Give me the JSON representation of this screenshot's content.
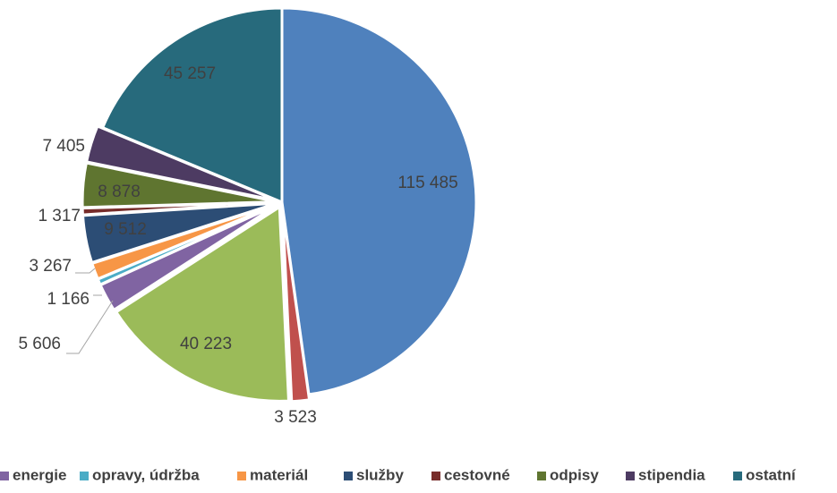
{
  "chart_data": {
    "type": "pie",
    "title": "",
    "categories": [
      "",
      "",
      "",
      "energie",
      "opravy, údržba",
      "materiál",
      "služby",
      "cestovné",
      "odpisy",
      "stipendia",
      "ostatní"
    ],
    "values": [
      115485,
      3523,
      40223,
      5606,
      1166,
      3267,
      9512,
      1317,
      8878,
      7405,
      45257
    ],
    "value_labels": [
      "115 485",
      "3 523",
      "40 223",
      "5 606",
      "1 166",
      "3 267",
      "9 512",
      "1 317",
      "8 878",
      "7 405",
      "45 257"
    ],
    "colors": [
      "#4f81bd",
      "#c0504d",
      "#9bbb59",
      "#8064a2",
      "#4bacc6",
      "#f79646",
      "#2c4d75",
      "#772c2a",
      "#5f7530",
      "#4d3b62",
      "#276a7c"
    ],
    "legend": {
      "position": "bottom",
      "entries": [
        "energie",
        "opravy, údržba",
        "materiál",
        "služby",
        "cestovné",
        "odpisy",
        "stipendia",
        "ostatní"
      ]
    }
  }
}
